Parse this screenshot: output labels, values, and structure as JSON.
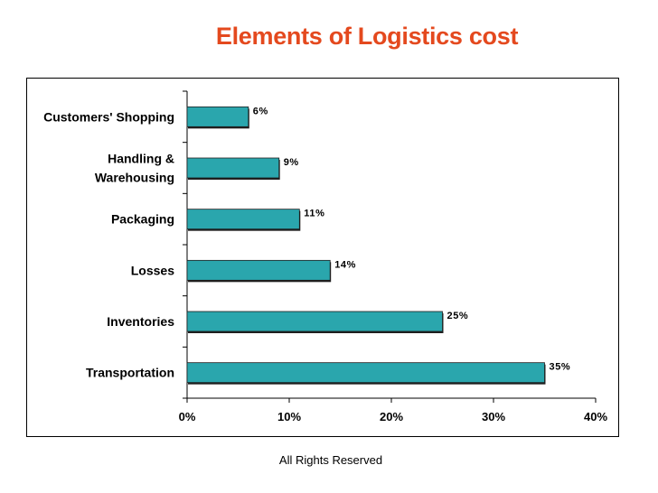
{
  "title": "Elements of Logistics cost",
  "footer": "All Rights Reserved",
  "colors": {
    "title": "#e4491e",
    "bar": "#2aa6ad",
    "bar_edge": "#1e1e1e"
  },
  "chart_data": {
    "type": "bar",
    "orientation": "horizontal",
    "title": "Elements of Logistics cost",
    "categories": [
      [
        "Customers' Shopping"
      ],
      [
        "Handling &",
        "Warehousing"
      ],
      [
        "Packaging"
      ],
      [
        "Losses"
      ],
      [
        "Inventories"
      ],
      [
        "Transportation"
      ]
    ],
    "values": [
      6,
      9,
      11,
      14,
      25,
      35
    ],
    "data_labels": [
      "6%",
      "9%",
      "11%",
      "14%",
      "25%",
      "35%"
    ],
    "xlim": [
      0,
      40
    ],
    "xticks": [
      0,
      10,
      20,
      30,
      40
    ],
    "xtick_labels": [
      "0%",
      "10%",
      "20%",
      "30%",
      "40%"
    ],
    "grid": false,
    "legend": "none"
  }
}
